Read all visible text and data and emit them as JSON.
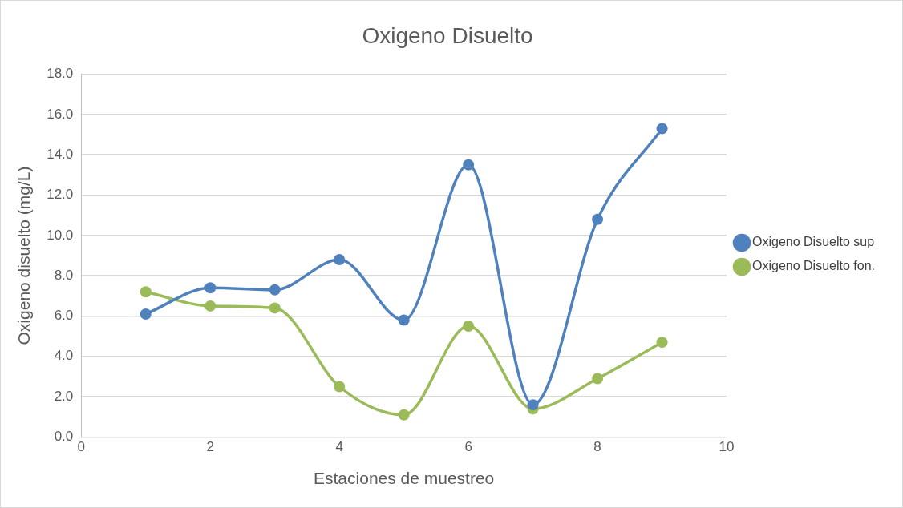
{
  "chart_data": {
    "type": "line",
    "title": "Oxigeno Disuelto",
    "xlabel": "Estaciones de muestreo",
    "ylabel": "Oxigeno disuelto (mg/L)",
    "x": [
      1,
      2,
      3,
      4,
      5,
      6,
      7,
      8,
      9
    ],
    "series": [
      {
        "name": "Oxigeno Disuelto sup",
        "color": "#4f81bd",
        "values": [
          6.1,
          7.4,
          7.3,
          8.8,
          5.8,
          13.5,
          1.6,
          10.8,
          15.3
        ]
      },
      {
        "name": "Oxigeno Disuelto fon.",
        "color": "#9bbb59",
        "values": [
          7.2,
          6.5,
          6.4,
          2.5,
          1.1,
          5.5,
          1.4,
          2.9,
          4.7
        ]
      }
    ],
    "xlim": [
      0,
      10
    ],
    "xticks": [
      0,
      2,
      4,
      6,
      8,
      10
    ],
    "ylim": [
      0,
      18
    ],
    "yticks": [
      {
        "value": 0,
        "label": "0.0"
      },
      {
        "value": 2,
        "label": "2.0"
      },
      {
        "value": 4,
        "label": "4.0"
      },
      {
        "value": 6,
        "label": "6.0"
      },
      {
        "value": 8,
        "label": "8.0"
      },
      {
        "value": 10,
        "label": "10.0"
      },
      {
        "value": 12,
        "label": "12.0"
      },
      {
        "value": 14,
        "label": "14.0"
      },
      {
        "value": 16,
        "label": "16.0"
      },
      {
        "value": 18,
        "label": "18.0"
      }
    ],
    "grid": "y",
    "legend": "right",
    "marker": "circle",
    "line_style": "solid"
  }
}
